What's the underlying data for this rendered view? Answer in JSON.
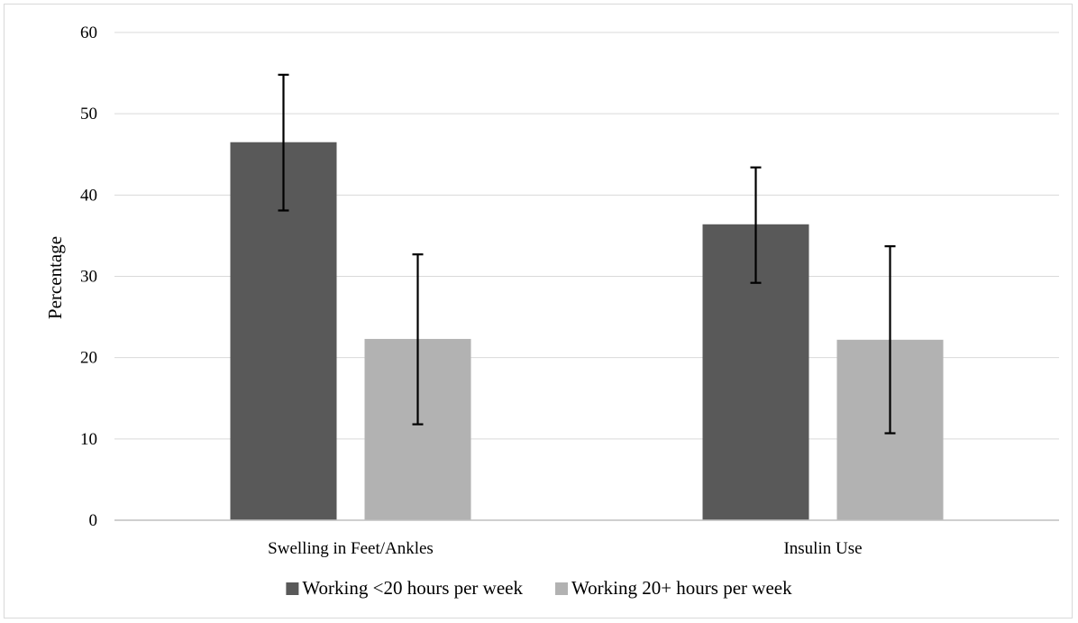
{
  "chart_data": {
    "type": "bar",
    "title": "",
    "xlabel": "",
    "ylabel": "Percentage",
    "ylim": [
      0,
      60
    ],
    "yticks": [
      0,
      10,
      20,
      30,
      40,
      50,
      60
    ],
    "grid": true,
    "legend_position": "bottom",
    "categories": [
      "Swelling in Feet/Ankles",
      "Insulin Use"
    ],
    "series": [
      {
        "name": "Working <20 hours per week",
        "color": "#595959",
        "values": [
          46.5,
          36.4
        ],
        "error_low": [
          38.1,
          29.2
        ],
        "error_high": [
          54.8,
          43.4
        ]
      },
      {
        "name": "Working 20+ hours per week",
        "color": "#b2b2b2",
        "values": [
          22.3,
          22.2
        ],
        "error_low": [
          11.8,
          10.7
        ],
        "error_high": [
          32.7,
          33.7
        ]
      }
    ]
  }
}
